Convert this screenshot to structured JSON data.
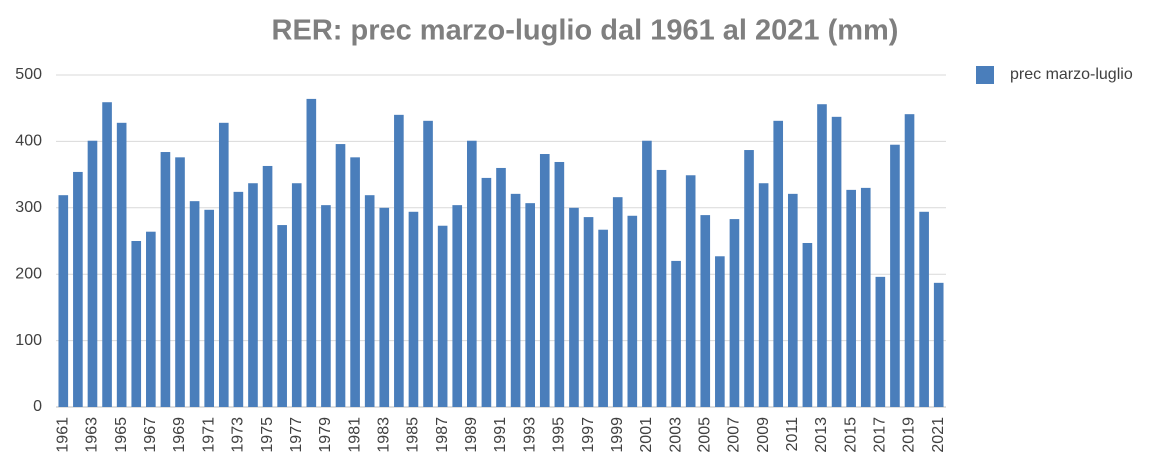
{
  "chart_data": {
    "type": "bar",
    "title": "RER: prec marzo-luglio dal 1961 al 2021 (mm)",
    "categories": [
      "1961",
      null,
      "1963",
      null,
      "1965",
      null,
      "1967",
      null,
      "1969",
      null,
      "1971",
      null,
      "1973",
      null,
      "1975",
      null,
      "1977",
      null,
      "1979",
      null,
      "1981",
      null,
      "1983",
      null,
      "1985",
      null,
      "1987",
      null,
      "1989",
      null,
      "1991",
      null,
      "1993",
      null,
      "1995",
      null,
      "1997",
      null,
      "1999",
      null,
      "2001",
      null,
      "2003",
      null,
      "2005",
      null,
      "2007",
      null,
      "2009",
      null,
      "2011",
      null,
      "2013",
      null,
      "2015",
      null,
      "2017",
      null,
      "2019",
      null,
      "2021"
    ],
    "series": [
      {
        "name": "prec marzo-luglio",
        "color": "#4a7ebb",
        "values": [
          319,
          354,
          401,
          459,
          428,
          250,
          264,
          384,
          376,
          310,
          297,
          428,
          324,
          337,
          363,
          274,
          337,
          464,
          304,
          396,
          376,
          319,
          300,
          440,
          294,
          431,
          273,
          304,
          401,
          345,
          360,
          321,
          307,
          381,
          369,
          300,
          286,
          267,
          316,
          288,
          401,
          357,
          220,
          349,
          289,
          227,
          283,
          387,
          337,
          431,
          321,
          247,
          456,
          437,
          327,
          330,
          196,
          395,
          441,
          294,
          187
        ]
      }
    ],
    "ylim": [
      0,
      500
    ],
    "yticks": [
      0,
      100,
      200,
      300,
      400,
      500
    ],
    "grid": true,
    "legend": "right"
  }
}
